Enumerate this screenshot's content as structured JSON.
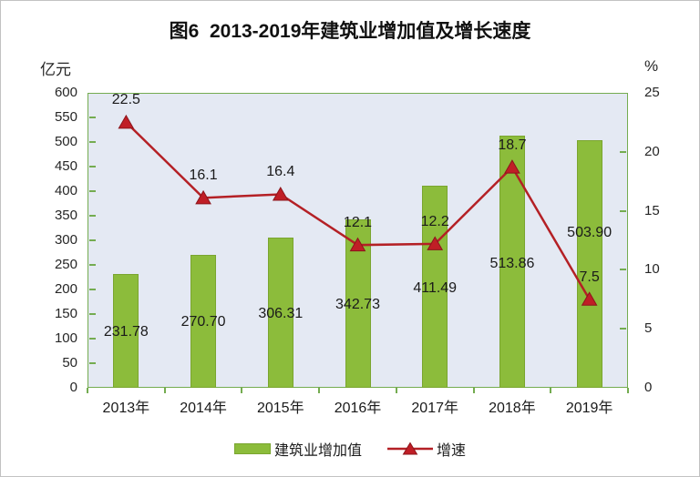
{
  "title": "图6  2013-2019年建筑业增加值及增长速度",
  "chart_data": {
    "type": "combo (bar + line, dual axis)",
    "categories": [
      "2013年",
      "2014年",
      "2015年",
      "2016年",
      "2017年",
      "2018年",
      "2019年"
    ],
    "series": [
      {
        "name": "建筑业增加值",
        "type": "bar",
        "axis": "left",
        "values": [
          231.78,
          270.7,
          306.31,
          342.73,
          411.49,
          513.86,
          503.9
        ],
        "labels": [
          "231.78",
          "270.70",
          "306.31",
          "342.73",
          "411.49",
          "513.86",
          "503.90"
        ]
      },
      {
        "name": "增速",
        "type": "line",
        "axis": "right",
        "values": [
          22.5,
          16.1,
          16.4,
          12.1,
          12.2,
          18.7,
          7.5
        ],
        "labels": [
          "22.5",
          "16.1",
          "16.4",
          "12.1",
          "12.2",
          "18.7",
          "7.5"
        ]
      }
    ],
    "left_axis": {
      "unit": "亿元",
      "min": 0,
      "max": 600,
      "step": 50,
      "tick_labels": [
        "0",
        "50",
        "100",
        "150",
        "200",
        "250",
        "300",
        "350",
        "400",
        "450",
        "500",
        "550",
        "600"
      ]
    },
    "right_axis": {
      "unit": "%",
      "min": 0,
      "max": 25,
      "step": 5,
      "tick_labels": [
        "0",
        "5",
        "10",
        "15",
        "20",
        "25"
      ]
    },
    "legend": {
      "position": "bottom",
      "items": [
        "建筑业增加值",
        "增速"
      ]
    },
    "grid": false,
    "colors": {
      "bar": "#8CBC3B",
      "bar_border": "#7AA52F",
      "line": "#B42025",
      "marker_fill": "#C01E26",
      "marker_edge": "#8C151B",
      "plot_bg": "#E4E9F3",
      "plot_border": "#74AC50",
      "text": "#1A1A1A"
    }
  }
}
